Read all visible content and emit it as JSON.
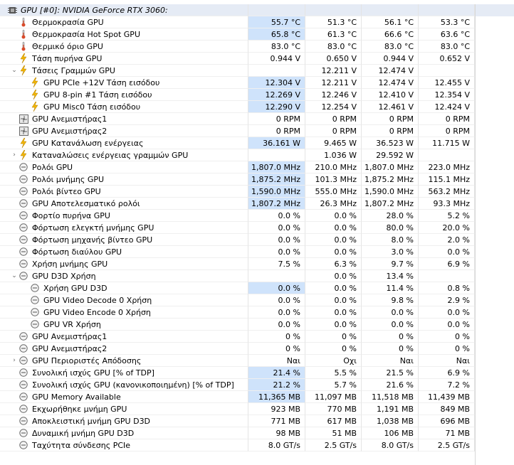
{
  "rows": [
    {
      "indent": 0,
      "icon": "gpu-chip-icon",
      "label": "GPU [#0]: NVIDIA GeForce RTX 3060:",
      "values": [
        "",
        "",
        "",
        ""
      ],
      "header": true
    },
    {
      "indent": 1,
      "icon": "thermometer-icon",
      "label": "Θερμοκρασία GPU",
      "values": [
        "55.7 °C",
        "51.3 °C",
        "56.1 °C",
        "53.3 °C"
      ],
      "hl": true
    },
    {
      "indent": 1,
      "icon": "thermometer-icon",
      "label": "Θερμοκρασία Hot Spot GPU",
      "values": [
        "65.8 °C",
        "61.3 °C",
        "66.6 °C",
        "63.6 °C"
      ],
      "hl": true
    },
    {
      "indent": 1,
      "icon": "thermometer-icon",
      "label": "Θερμικό όριο GPU",
      "values": [
        "83.0 °C",
        "83.0 °C",
        "83.0 °C",
        "83.0 °C"
      ]
    },
    {
      "indent": 1,
      "icon": "voltage-icon",
      "label": "Τάση πυρήνα GPU",
      "values": [
        "0.944 V",
        "0.650 V",
        "0.944 V",
        "0.652 V"
      ]
    },
    {
      "indent": 1,
      "expand": "v",
      "icon": "voltage-icon",
      "label": "Τάσεις Γραμμών GPU",
      "values": [
        "",
        "12.211 V",
        "12.474 V",
        ""
      ]
    },
    {
      "indent": 2,
      "icon": "voltage-icon",
      "label": "GPU PCIe +12V Τάση εισόδου",
      "values": [
        "12.304 V",
        "12.211 V",
        "12.474 V",
        "12.455 V"
      ],
      "hl": true
    },
    {
      "indent": 2,
      "icon": "voltage-icon",
      "label": "GPU 8-pin #1 Τάση εισόδου",
      "values": [
        "12.269 V",
        "12.246 V",
        "12.410 V",
        "12.354 V"
      ],
      "hl": true
    },
    {
      "indent": 2,
      "icon": "voltage-icon",
      "label": "GPU Misc0 Τάση εισόδου",
      "values": [
        "12.290 V",
        "12.254 V",
        "12.461 V",
        "12.424 V"
      ],
      "hl": true
    },
    {
      "indent": 1,
      "icon": "fan-icon",
      "label": "GPU Ανεμιστήρας1",
      "values": [
        "0 RPM",
        "0 RPM",
        "0 RPM",
        "0 RPM"
      ]
    },
    {
      "indent": 1,
      "icon": "fan-icon",
      "label": "GPU Ανεμιστήρας2",
      "values": [
        "0 RPM",
        "0 RPM",
        "0 RPM",
        "0 RPM"
      ]
    },
    {
      "indent": 1,
      "icon": "power-icon",
      "label": "GPU Κατανάλωση ενέργειας",
      "values": [
        "36.161 W",
        "9.465 W",
        "36.523 W",
        "11.715 W"
      ],
      "hl": true
    },
    {
      "indent": 1,
      "expand": ">",
      "icon": "power-icon",
      "label": "Καταναλώσεις ενέργειας γραμμών GPU",
      "values": [
        "",
        "1.036 W",
        "29.592 W",
        ""
      ]
    },
    {
      "indent": 1,
      "icon": "clock-icon",
      "label": "Ρολόι GPU",
      "values": [
        "1,807.0 MHz",
        "210.0 MHz",
        "1,807.0 MHz",
        "223.0 MHz"
      ],
      "hl": true
    },
    {
      "indent": 1,
      "icon": "clock-icon",
      "label": "Ρολόι μνήμης GPU",
      "values": [
        "1,875.2 MHz",
        "101.3 MHz",
        "1,875.2 MHz",
        "115.1 MHz"
      ],
      "hl": true
    },
    {
      "indent": 1,
      "icon": "clock-icon",
      "label": "Ρολόι βίντεο GPU",
      "values": [
        "1,590.0 MHz",
        "555.0 MHz",
        "1,590.0 MHz",
        "563.2 MHz"
      ],
      "hl": true
    },
    {
      "indent": 1,
      "icon": "clock-icon",
      "label": "GPU Αποτελεσματικό ρολόι",
      "values": [
        "1,807.2 MHz",
        "26.3 MHz",
        "1,807.2 MHz",
        "93.3 MHz"
      ],
      "hl": true
    },
    {
      "indent": 1,
      "icon": "clock-icon",
      "label": "Φορτίο πυρήνα GPU",
      "values": [
        "0.0 %",
        "0.0 %",
        "28.0 %",
        "5.2 %"
      ]
    },
    {
      "indent": 1,
      "icon": "clock-icon",
      "label": "Φόρτωση ελεγκτή μνήμης GPU",
      "values": [
        "0.0 %",
        "0.0 %",
        "80.0 %",
        "20.0 %"
      ]
    },
    {
      "indent": 1,
      "icon": "clock-icon",
      "label": "Φόρτωση μηχανής βίντεο GPU",
      "values": [
        "0.0 %",
        "0.0 %",
        "8.0 %",
        "2.0 %"
      ]
    },
    {
      "indent": 1,
      "icon": "clock-icon",
      "label": "Φόρτωση διαύλου GPU",
      "values": [
        "0.0 %",
        "0.0 %",
        "3.0 %",
        "0.0 %"
      ]
    },
    {
      "indent": 1,
      "icon": "clock-icon",
      "label": "Χρήση μνήμης GPU",
      "values": [
        "7.5 %",
        "6.3 %",
        "9.7 %",
        "6.9 %"
      ]
    },
    {
      "indent": 1,
      "expand": "v",
      "icon": "clock-icon",
      "label": "GPU D3D Χρήση",
      "values": [
        "",
        "0.0 %",
        "13.4 %",
        ""
      ]
    },
    {
      "indent": 2,
      "icon": "clock-icon",
      "label": "Χρήση GPU D3D",
      "values": [
        "0.0 %",
        "0.0 %",
        "11.4 %",
        "0.8 %"
      ],
      "hl": true
    },
    {
      "indent": 2,
      "icon": "clock-icon",
      "label": "GPU Video Decode 0 Χρήση",
      "values": [
        "0.0 %",
        "0.0 %",
        "9.8 %",
        "2.9 %"
      ]
    },
    {
      "indent": 2,
      "icon": "clock-icon",
      "label": "GPU Video Encode 0 Χρήση",
      "values": [
        "0.0 %",
        "0.0 %",
        "0.0 %",
        "0.0 %"
      ]
    },
    {
      "indent": 2,
      "icon": "clock-icon",
      "label": "GPU VR Χρήση",
      "values": [
        "0.0 %",
        "0.0 %",
        "0.0 %",
        "0.0 %"
      ]
    },
    {
      "indent": 1,
      "icon": "clock-icon",
      "label": "GPU Ανεμιστήρας1",
      "values": [
        "0 %",
        "0 %",
        "0 %",
        "0 %"
      ]
    },
    {
      "indent": 1,
      "icon": "clock-icon",
      "label": "GPU Ανεμιστήρας2",
      "values": [
        "0 %",
        "0 %",
        "0 %",
        "0 %"
      ]
    },
    {
      "indent": 1,
      "expand": ">",
      "icon": "clock-icon",
      "label": "GPU Περιοριστές Απόδοσης",
      "values": [
        "Ναι",
        "Οχι",
        "Ναι",
        "Ναι"
      ]
    },
    {
      "indent": 1,
      "icon": "clock-icon",
      "label": "Συνολική ισχύς GPU [% of TDP]",
      "values": [
        "21.4 %",
        "5.5 %",
        "21.5 %",
        "6.9 %"
      ],
      "hl": true
    },
    {
      "indent": 1,
      "icon": "clock-icon",
      "label": "Συνολική ισχύς GPU (κανονικοποιημένη) [% of TDP]",
      "values": [
        "21.2 %",
        "5.7 %",
        "21.6 %",
        "7.2 %"
      ],
      "hl": true
    },
    {
      "indent": 1,
      "icon": "clock-icon",
      "label": "GPU Memory Available",
      "values": [
        "11,365 MB",
        "11,097 MB",
        "11,518 MB",
        "11,439 MB"
      ],
      "hl": true
    },
    {
      "indent": 1,
      "icon": "clock-icon",
      "label": "Εκχωρήθηκε μνήμη GPU",
      "values": [
        "923 MB",
        "770 MB",
        "1,191 MB",
        "849 MB"
      ]
    },
    {
      "indent": 1,
      "icon": "clock-icon",
      "label": "Αποκλειστική μνήμη GPU D3D",
      "values": [
        "771 MB",
        "617 MB",
        "1,038 MB",
        "696 MB"
      ]
    },
    {
      "indent": 1,
      "icon": "clock-icon",
      "label": "Δυναμική μνήμη GPU D3D",
      "values": [
        "98 MB",
        "51 MB",
        "106 MB",
        "71 MB"
      ]
    },
    {
      "indent": 1,
      "icon": "clock-icon",
      "label": "Ταχύτητα σύνδεσης PCIe",
      "values": [
        "8.0 GT/s",
        "2.5 GT/s",
        "8.0 GT/s",
        "2.5 GT/s"
      ]
    }
  ],
  "colors": {
    "highlight": "#cfe3fb",
    "header_bg": "#e5ebf5",
    "voltage_icon": "#f2b600",
    "thermometer_icon": "#d94a2a",
    "fan_icon": "#6a6a6a",
    "clock_icon": "#6a6a6a"
  }
}
